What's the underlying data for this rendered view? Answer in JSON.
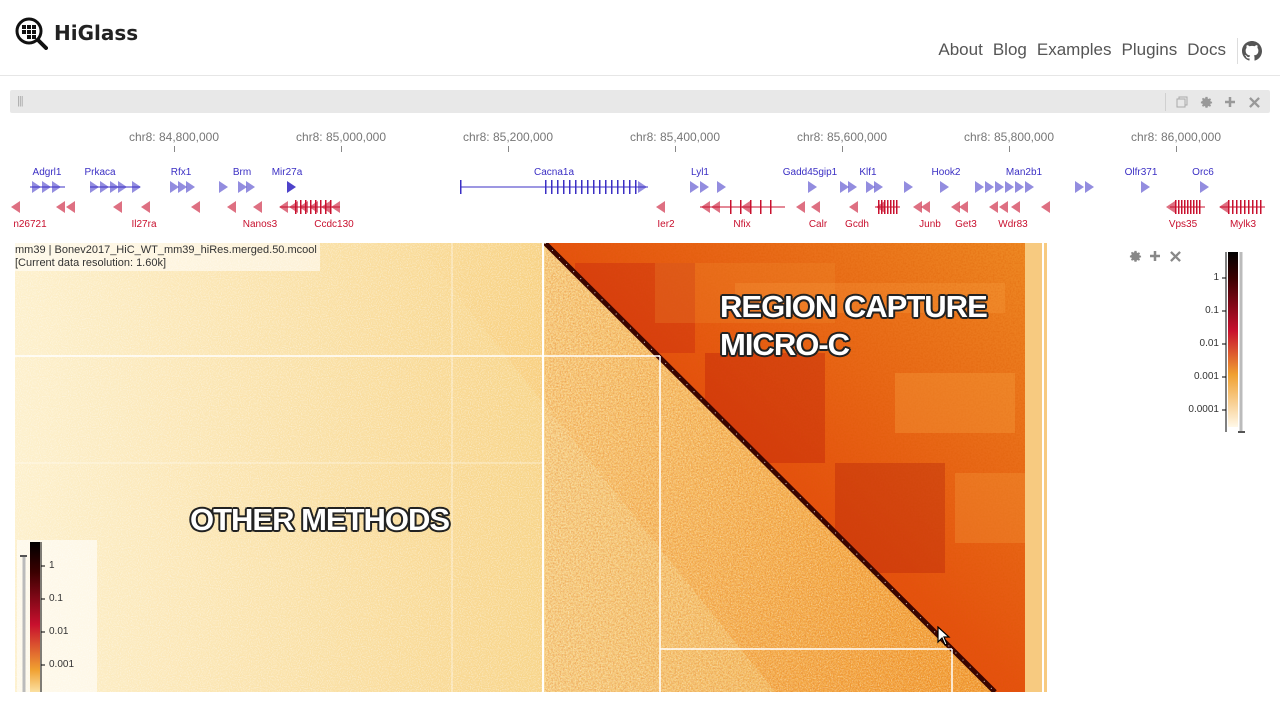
{
  "navbar": {
    "brand": "HiGlass",
    "links": [
      "About",
      "Blog",
      "Examples",
      "Plugins",
      "Docs"
    ]
  },
  "icons": {
    "logo": "higlass-magnifier-logo",
    "github": "github-icon",
    "drag": "drag-handle-icon",
    "copy": "copy-icon",
    "settings": "gear-icon",
    "add": "plus-icon",
    "close": "close-icon"
  },
  "axis": {
    "ticks": [
      "chr8: 84,800,000",
      "chr8: 85,000,000",
      "chr8: 85,200,000",
      "chr8: 85,400,000",
      "chr8: 85,600,000",
      "chr8: 85,800,000",
      "chr8: 86,000,000"
    ]
  },
  "genes": {
    "plus": [
      "Adgrl1",
      "Prkaca",
      "Rfx1",
      "Brm",
      "Mir27a",
      "Cacna1a",
      "Lyl1",
      "Gadd45gip1",
      "Klf1",
      "Hook2",
      "Man2b1",
      "Olfr371",
      "Orc6"
    ],
    "minus": [
      "n26721",
      "Il27ra",
      "Nanos3",
      "Ccdc130",
      "Ier2",
      "Nfix",
      "Calr",
      "Gcdh",
      "Junb",
      "Get3",
      "Wdr83",
      "Vps35",
      "Mylk3"
    ]
  },
  "heatmap": {
    "label_line1": "mm39 | Bonev2017_HiC_WT_mm39_hiRes.merged.50.mcool",
    "label_line2": "[Current data resolution: 1.60k]",
    "overlay_upper_line1": "REGION CAPTURE",
    "overlay_upper_line2": "MICRO-C",
    "overlay_lower": "OTHER METHODS"
  },
  "colorbar_right": {
    "ticks": [
      "1",
      "0.1",
      "0.01",
      "0.001",
      "0.0001"
    ]
  },
  "colorbar_left": {
    "ticks": [
      "1",
      "0.1",
      "0.01",
      "0.001"
    ]
  },
  "colors": {
    "gene_plus": "#3b2fc4",
    "gene_minus": "#c8102e",
    "heat_low": "#fbe6b0",
    "heat_mid": "#f0a020",
    "heat_high": "#d62e10",
    "heat_max": "#1a0000"
  }
}
